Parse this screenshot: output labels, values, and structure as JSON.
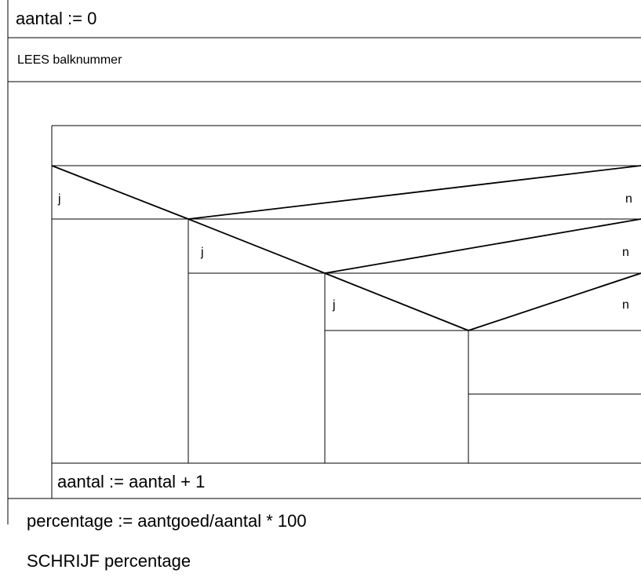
{
  "statements": {
    "init": "aantal := 0",
    "read": "LEES balknummer",
    "increment": "aantal := aantal + 1",
    "percentage": "percentage := aantgoed/aantal * 100",
    "write": "SCHRIJF percentage"
  },
  "decisions": [
    {
      "yes": "j",
      "no": "n"
    },
    {
      "yes": "j",
      "no": "n"
    },
    {
      "yes": "j",
      "no": "n"
    }
  ]
}
